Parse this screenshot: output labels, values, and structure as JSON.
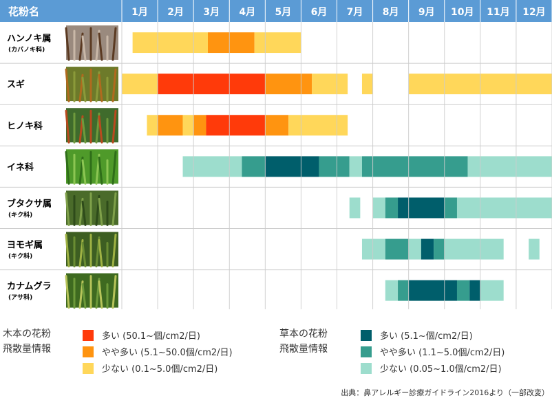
{
  "chart_data": {
    "type": "table",
    "header": "花粉名",
    "months": [
      "1月",
      "2月",
      "3月",
      "4月",
      "5月",
      "6月",
      "7月",
      "8月",
      "9月",
      "10月",
      "11月",
      "12月"
    ],
    "rows": [
      {
        "name": "ハンノキ属",
        "family": "(カバノキ科)",
        "group": "tree",
        "segments": [
          {
            "start": 1.3,
            "end": 3.4,
            "level": "low"
          },
          {
            "start": 3.4,
            "end": 4.7,
            "level": "medium"
          },
          {
            "start": 4.7,
            "end": 6.0,
            "level": "low"
          }
        ]
      },
      {
        "name": "スギ",
        "family": "",
        "group": "tree",
        "segments": [
          {
            "start": 1.0,
            "end": 2.0,
            "level": "low"
          },
          {
            "start": 2.0,
            "end": 5.0,
            "level": "high"
          },
          {
            "start": 5.0,
            "end": 6.3,
            "level": "medium"
          },
          {
            "start": 6.3,
            "end": 7.3,
            "level": "low"
          },
          {
            "start": 7.7,
            "end": 8.0,
            "level": "low"
          },
          {
            "start": 9.0,
            "end": 13.0,
            "level": "low"
          }
        ]
      },
      {
        "name": "ヒノキ科",
        "family": "",
        "group": "tree",
        "segments": [
          {
            "start": 1.7,
            "end": 2.0,
            "level": "low"
          },
          {
            "start": 2.0,
            "end": 2.7,
            "level": "medium"
          },
          {
            "start": 2.7,
            "end": 3.0,
            "level": "low"
          },
          {
            "start": 3.0,
            "end": 3.35,
            "level": "medium"
          },
          {
            "start": 3.35,
            "end": 5.0,
            "level": "high"
          },
          {
            "start": 5.0,
            "end": 5.65,
            "level": "medium"
          },
          {
            "start": 5.65,
            "end": 7.3,
            "level": "low"
          }
        ]
      },
      {
        "name": "イネ科",
        "family": "",
        "group": "herb",
        "segments": [
          {
            "start": 2.7,
            "end": 4.35,
            "level": "low"
          },
          {
            "start": 4.35,
            "end": 5.0,
            "level": "medium"
          },
          {
            "start": 5.0,
            "end": 6.5,
            "level": "high"
          },
          {
            "start": 6.5,
            "end": 7.35,
            "level": "medium"
          },
          {
            "start": 7.35,
            "end": 7.7,
            "level": "low"
          },
          {
            "start": 7.7,
            "end": 10.65,
            "level": "medium"
          },
          {
            "start": 10.65,
            "end": 13.0,
            "level": "low"
          }
        ]
      },
      {
        "name": "ブタクサ属",
        "family": "(キク科)",
        "group": "herb",
        "segments": [
          {
            "start": 7.35,
            "end": 7.65,
            "level": "low"
          },
          {
            "start": 8.0,
            "end": 8.35,
            "level": "low"
          },
          {
            "start": 8.35,
            "end": 8.7,
            "level": "medium"
          },
          {
            "start": 8.7,
            "end": 10.0,
            "level": "high"
          },
          {
            "start": 10.0,
            "end": 10.35,
            "level": "medium"
          },
          {
            "start": 10.35,
            "end": 13.0,
            "level": "low"
          }
        ]
      },
      {
        "name": "ヨモギ属",
        "family": "(キク科)",
        "group": "herb",
        "segments": [
          {
            "start": 7.7,
            "end": 8.35,
            "level": "low"
          },
          {
            "start": 8.35,
            "end": 9.0,
            "level": "medium"
          },
          {
            "start": 9.0,
            "end": 9.35,
            "level": "low"
          },
          {
            "start": 9.35,
            "end": 9.7,
            "level": "high"
          },
          {
            "start": 9.7,
            "end": 10.0,
            "level": "medium"
          },
          {
            "start": 10.0,
            "end": 11.65,
            "level": "low"
          },
          {
            "start": 12.35,
            "end": 12.65,
            "level": "low"
          }
        ]
      },
      {
        "name": "カナムグラ",
        "family": "(アサ科)",
        "group": "herb",
        "segments": [
          {
            "start": 8.35,
            "end": 8.7,
            "level": "low"
          },
          {
            "start": 8.7,
            "end": 9.0,
            "level": "medium"
          },
          {
            "start": 9.0,
            "end": 10.35,
            "level": "high"
          },
          {
            "start": 10.35,
            "end": 10.7,
            "level": "medium"
          },
          {
            "start": 10.7,
            "end": 11.0,
            "level": "high"
          },
          {
            "start": 11.0,
            "end": 11.65,
            "level": "low"
          }
        ]
      }
    ],
    "colors": {
      "header_bg": "#5b9bd5",
      "tree": {
        "high": "#ff3a0a",
        "medium": "#ff9410",
        "low": "#ffd75a"
      },
      "herb": {
        "high": "#005e6b",
        "medium": "#369d8e",
        "low": "#9dddcd"
      },
      "grid": "#cccccc"
    }
  },
  "legend": {
    "tree": {
      "title": "木本の花粉\n飛散量情報",
      "items": [
        "多い (50.1~個/cm2/日)",
        "やや多い (5.1~50.0個/cm2/日)",
        "少ない (0.1~5.0個/cm2/日)"
      ]
    },
    "herb": {
      "title": "草本の花粉\n飛散量情報",
      "items": [
        "多い (5.1~個/cm2/日)",
        "やや多い (1.1~5.0個/cm2/日)",
        "少ない (0.05~1.0個/cm2/日)"
      ]
    }
  },
  "source": "出典：鼻アレルギー診療ガイドライン2016より（一部改変）"
}
